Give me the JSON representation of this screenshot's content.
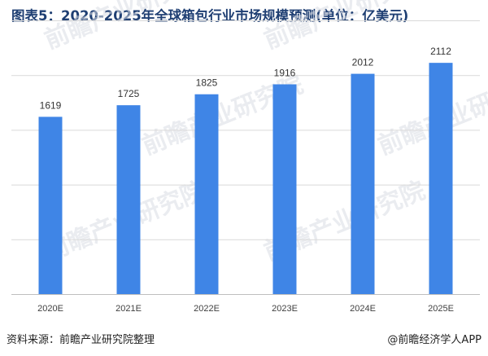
{
  "title": "图表5：2020-2025年全球箱包行业市场规模预测(单位：亿美元)",
  "source": "资料来源：前瞻产业研究院整理",
  "credit": "@前瞻经济学人APP",
  "watermark": {
    "text": "前瞻产业研究院",
    "color": "#d9dde3"
  },
  "chart_data": {
    "type": "bar",
    "title": "图表5：2020-2025年全球箱包行业市场规模预测(单位：亿美元)",
    "categories": [
      "2020E",
      "2021E",
      "2022E",
      "2023E",
      "2024E",
      "2025E"
    ],
    "values": [
      1619,
      1725,
      1825,
      1916,
      2012,
      2112
    ],
    "xlabel": "",
    "ylabel": "",
    "ylim": [
      0,
      2500
    ],
    "grid": true,
    "legend": "none",
    "bar_color": "#3f85e6",
    "grid_color": "#d9d9d9"
  }
}
